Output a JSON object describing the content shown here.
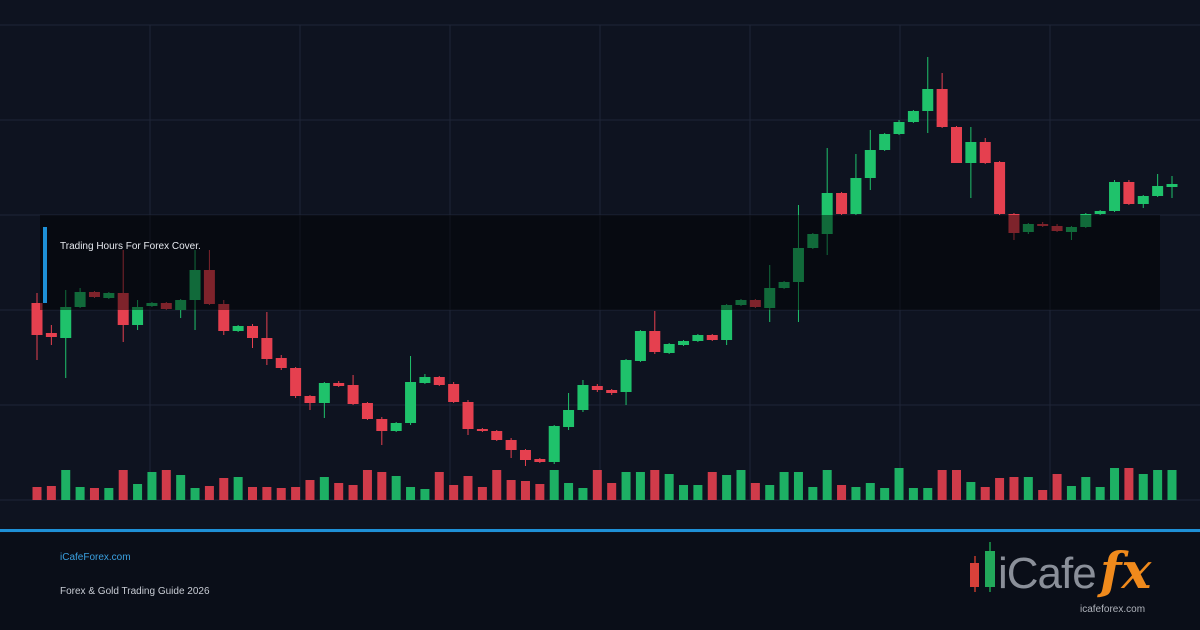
{
  "chart_data": {
    "type": "candlestick",
    "annotation": "Trading Hours For Forex Cover.",
    "up_color": "#1fc26b",
    "down_color": "#e5404f",
    "ylim": [
      0,
      475
    ],
    "yticks": [
      0,
      95,
      190,
      285,
      380,
      475
    ],
    "grid": true,
    "vlim": [
      0,
      95
    ],
    "ohlc": [
      [
        197,
        207,
        140,
        165
      ],
      [
        167,
        175,
        155,
        163
      ],
      [
        162,
        210,
        122,
        193
      ],
      [
        193,
        212,
        192,
        208
      ],
      [
        208,
        209,
        202,
        203
      ],
      [
        202,
        208,
        201,
        207
      ],
      [
        207,
        250,
        158,
        175
      ],
      [
        175,
        200,
        170,
        193
      ],
      [
        194,
        198,
        193,
        197
      ],
      [
        197,
        198,
        190,
        191
      ],
      [
        190,
        201,
        182,
        200
      ],
      [
        200,
        250,
        170,
        230
      ],
      [
        230,
        250,
        195,
        196
      ],
      [
        196,
        200,
        165,
        169
      ],
      [
        169,
        175,
        168,
        174
      ],
      [
        174,
        176,
        152,
        162
      ],
      [
        162,
        188,
        135,
        141
      ],
      [
        142,
        145,
        130,
        132
      ],
      [
        132,
        133,
        102,
        104
      ],
      [
        104,
        105,
        90,
        97
      ],
      [
        97,
        118,
        82,
        117
      ],
      [
        117,
        119,
        113,
        114
      ],
      [
        115,
        125,
        95,
        96
      ],
      [
        97,
        98,
        80,
        81
      ],
      [
        81,
        83,
        55,
        69
      ],
      [
        69,
        78,
        68,
        77
      ],
      [
        77,
        144,
        75,
        118
      ],
      [
        117,
        126,
        116,
        123
      ],
      [
        123,
        124,
        114,
        115
      ],
      [
        116,
        118,
        97,
        98
      ],
      [
        98,
        100,
        65,
        71
      ],
      [
        71,
        72,
        68,
        69
      ],
      [
        69,
        70,
        59,
        60
      ],
      [
        60,
        62,
        42,
        50
      ],
      [
        50,
        51,
        34,
        40
      ],
      [
        41,
        42,
        37,
        38
      ],
      [
        38,
        75,
        36,
        74
      ],
      [
        73,
        107,
        70,
        90
      ],
      [
        90,
        120,
        88,
        115
      ],
      [
        114,
        116,
        108,
        110
      ],
      [
        110,
        111,
        105,
        107
      ],
      [
        108,
        141,
        95,
        140
      ],
      [
        139,
        170,
        138,
        169
      ],
      [
        169,
        189,
        146,
        148
      ],
      [
        147,
        157,
        146,
        156
      ],
      [
        155,
        160,
        154,
        159
      ],
      [
        159,
        166,
        158,
        165
      ],
      [
        165,
        166,
        159,
        160
      ],
      [
        160,
        196,
        155,
        195
      ],
      [
        195,
        201,
        194,
        200
      ],
      [
        200,
        201,
        192,
        193
      ],
      [
        192,
        235,
        178,
        212
      ],
      [
        212,
        219,
        211,
        218
      ],
      [
        218,
        295,
        178,
        252
      ],
      [
        252,
        267,
        251,
        266
      ],
      [
        266,
        352,
        245,
        307
      ],
      [
        307,
        308,
        285,
        286
      ],
      [
        286,
        346,
        285,
        322
      ],
      [
        322,
        370,
        310,
        350
      ],
      [
        350,
        367,
        349,
        366
      ],
      [
        366,
        380,
        365,
        378
      ],
      [
        378,
        390,
        377,
        389
      ],
      [
        389,
        443,
        367,
        411
      ],
      [
        411,
        427,
        372,
        373
      ],
      [
        373,
        374,
        337,
        337
      ],
      [
        337,
        373,
        302,
        358
      ],
      [
        358,
        362,
        336,
        337
      ],
      [
        338,
        339,
        285,
        286
      ],
      [
        286,
        287,
        260,
        267
      ],
      [
        268,
        277,
        266,
        276
      ],
      [
        276,
        278,
        273,
        274
      ],
      [
        274,
        276,
        268,
        269
      ],
      [
        268,
        274,
        260,
        273
      ],
      [
        273,
        287,
        272,
        286
      ],
      [
        286,
        290,
        285,
        289
      ],
      [
        289,
        320,
        288,
        318
      ],
      [
        318,
        320,
        295,
        296
      ],
      [
        296,
        305,
        292,
        304
      ],
      [
        304,
        326,
        303,
        314
      ],
      [
        313,
        324,
        302,
        316
      ]
    ],
    "volumes": [
      13,
      14,
      30,
      13,
      12,
      12,
      30,
      16,
      28,
      30,
      25,
      12,
      14,
      22,
      23,
      13,
      13,
      12,
      13,
      20,
      23,
      17,
      15,
      30,
      28,
      24,
      13,
      11,
      28,
      15,
      24,
      13,
      30,
      20,
      19,
      16,
      30,
      17,
      12,
      30,
      17,
      28,
      28,
      30,
      26,
      15,
      15,
      28,
      25,
      30,
      17,
      15,
      28,
      28,
      13,
      30,
      15,
      13,
      17,
      12,
      32,
      12,
      12,
      30,
      30,
      18,
      13,
      22,
      23,
      23,
      10,
      26,
      14,
      23,
      13,
      32,
      32,
      26,
      30,
      30
    ]
  },
  "footer": {
    "site": "iCafeForex.com",
    "tagline": "Forex & Gold Trading Guide 2026"
  },
  "logo": {
    "text": "iCafe",
    "accent": "fx",
    "url": "icafeforex.com"
  }
}
